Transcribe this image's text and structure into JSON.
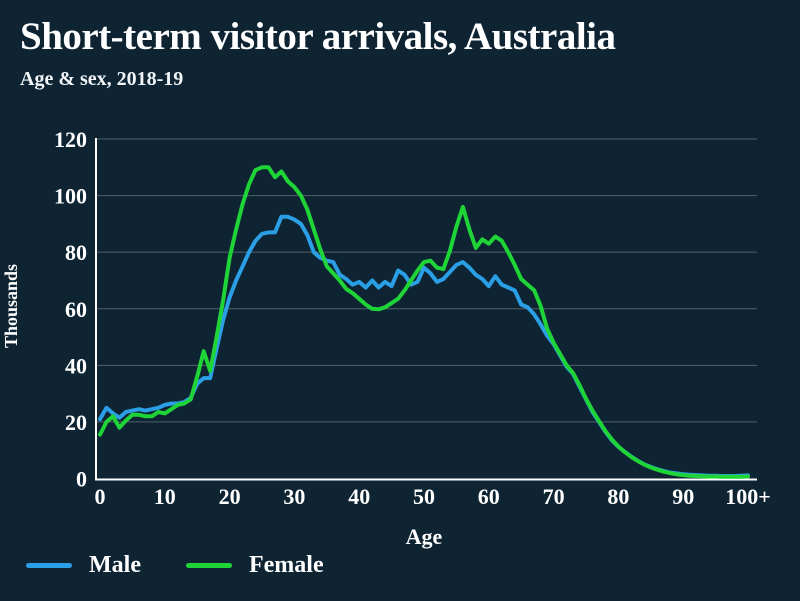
{
  "header": {
    "title": "Short-term visitor arrivals, Australia",
    "subtitle": "Age & sex, 2018-19"
  },
  "legend": {
    "items": [
      {
        "label": "Male",
        "color": "#2b9fe5"
      },
      {
        "label": "Female",
        "color": "#1fd437"
      }
    ]
  },
  "colors": {
    "background": "#0e2433",
    "text": "#ffffff",
    "grid": "rgba(255,255,255,0.28)",
    "axis": "#ffffff",
    "male": "#2b9fe5",
    "female": "#1fd437"
  },
  "chart_data": {
    "type": "line",
    "title": "Short-term visitor arrivals, Australia",
    "subtitle": "Age & sex, 2018-19",
    "xlabel": "Age",
    "ylabel": "Thousands",
    "xlim": [
      0,
      100
    ],
    "ylim": [
      0,
      120
    ],
    "grid": "horizontal",
    "legend_position": "bottom-left",
    "y_ticks": [
      0,
      20,
      40,
      60,
      80,
      100,
      120
    ],
    "x_ticks": [
      "0",
      "10",
      "20",
      "30",
      "40",
      "50",
      "60",
      "70",
      "80",
      "90",
      "100+"
    ],
    "x_unit": "single year of age, 0 to 100+",
    "series": [
      {
        "name": "Male",
        "color": "#2b9fe5",
        "values": [
          21,
          25,
          23,
          21.5,
          23.5,
          24,
          24.5,
          24,
          24.5,
          25,
          26,
          26.5,
          26.5,
          27,
          28.5,
          33.5,
          35.5,
          35.5,
          46,
          56,
          64,
          70,
          75,
          80,
          84,
          86.5,
          87,
          87,
          92.5,
          92.5,
          91.5,
          90,
          86,
          80,
          78,
          77,
          76.5,
          72,
          70.5,
          68.5,
          69.5,
          67.5,
          70,
          67.5,
          69.5,
          68,
          73.5,
          72,
          68.5,
          69.5,
          74.5,
          72.5,
          69.5,
          70.5,
          73,
          75.5,
          76.5,
          74.5,
          72,
          70.5,
          68,
          71.5,
          68.5,
          67.5,
          66.5,
          61.5,
          60.5,
          58,
          54.5,
          50.5,
          47.5,
          43.5,
          39.5,
          37,
          32.5,
          28,
          23.5,
          20,
          16.5,
          13.5,
          11.2,
          9.4,
          7.7,
          6.3,
          5,
          4.1,
          3.3,
          2.6,
          2.1,
          1.8,
          1.5,
          1.3,
          1.2,
          1.1,
          1,
          1,
          0.9,
          0.9,
          0.9,
          1,
          1.1
        ]
      },
      {
        "name": "Female",
        "color": "#1fd437",
        "values": [
          15.5,
          20,
          22,
          18,
          20.5,
          22.5,
          22.5,
          22,
          22,
          23.5,
          23,
          24.5,
          26,
          26.5,
          28,
          36,
          45,
          38,
          50,
          63,
          78,
          88,
          97,
          104,
          109,
          110,
          110,
          106.5,
          108.5,
          105,
          103,
          100,
          95,
          88,
          81,
          75,
          72.5,
          70,
          67,
          65.5,
          63.5,
          61.5,
          60,
          59.8,
          60.5,
          62,
          63.5,
          66.5,
          70,
          73.5,
          76.5,
          77,
          74.5,
          74,
          80.5,
          89,
          96,
          88,
          81.5,
          84.5,
          83,
          85.5,
          84,
          80,
          75.5,
          70.5,
          68.5,
          66.5,
          61,
          53,
          48,
          44,
          40,
          37.3,
          33,
          28.2,
          24,
          20.3,
          16.8,
          13.8,
          11.3,
          9.3,
          7.6,
          6.2,
          4.9,
          3.9,
          3.1,
          2.4,
          1.9,
          1.5,
          1.2,
          1,
          0.9,
          0.8,
          0.7,
          0.7,
          0.6,
          0.6,
          0.6,
          0.6,
          0.7
        ]
      }
    ]
  }
}
